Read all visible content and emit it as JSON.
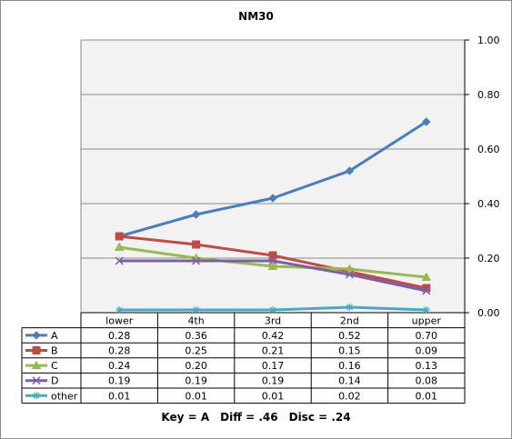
{
  "chart_data": {
    "type": "line",
    "title": "NM30",
    "categories": [
      "lower",
      "4th",
      "3rd",
      "2nd",
      "upper"
    ],
    "ylim": [
      0,
      1
    ],
    "yticks": [
      "0.00",
      "0.20",
      "0.40",
      "0.60",
      "0.80",
      "1.00"
    ],
    "ytick_values": [
      0,
      0.2,
      0.4,
      0.6,
      0.8,
      1.0
    ],
    "y_axis_side": "right",
    "grid": true,
    "legend": "data-table-below",
    "series": [
      {
        "name": "A",
        "color": "#4a7ebb",
        "marker": "diamond",
        "values": [
          0.28,
          0.36,
          0.42,
          0.52,
          0.7
        ],
        "labels": [
          "0.28",
          "0.36",
          "0.42",
          "0.52",
          "0.70"
        ]
      },
      {
        "name": "B",
        "color": "#be4b48",
        "marker": "square",
        "values": [
          0.28,
          0.25,
          0.21,
          0.15,
          0.09
        ],
        "labels": [
          "0.28",
          "0.25",
          "0.21",
          "0.15",
          "0.09"
        ]
      },
      {
        "name": "C",
        "color": "#98b954",
        "marker": "triangle",
        "values": [
          0.24,
          0.2,
          0.17,
          0.16,
          0.13
        ],
        "labels": [
          "0.24",
          "0.20",
          "0.17",
          "0.16",
          "0.13"
        ]
      },
      {
        "name": "D",
        "color": "#7d60a0",
        "marker": "x",
        "values": [
          0.19,
          0.19,
          0.19,
          0.14,
          0.08
        ],
        "labels": [
          "0.19",
          "0.19",
          "0.19",
          "0.14",
          "0.08"
        ]
      },
      {
        "name": "other",
        "color": "#46aac5",
        "marker": "star",
        "values": [
          0.01,
          0.01,
          0.01,
          0.02,
          0.01
        ],
        "labels": [
          "0.01",
          "0.01",
          "0.01",
          "0.02",
          "0.01"
        ]
      }
    ]
  },
  "colors": {
    "plot_background": "#f2f2f2",
    "gridline": "#8c8c8c",
    "table_border": "#000000"
  },
  "footer": {
    "key": "Key = A",
    "diff": "Diff = .46",
    "disc": "Disc = .24"
  }
}
